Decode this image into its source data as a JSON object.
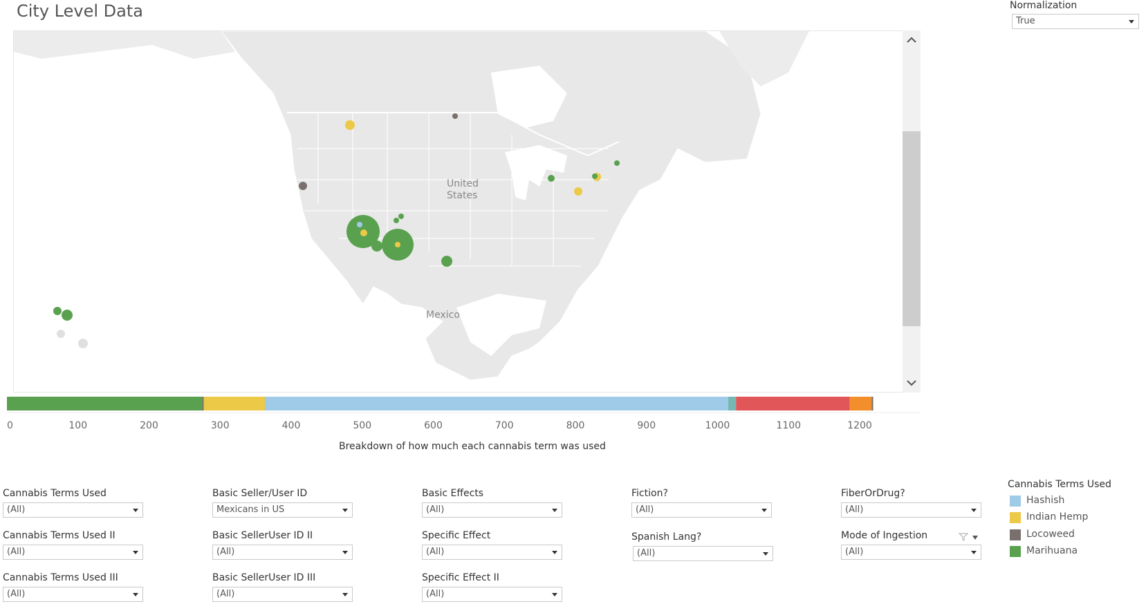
{
  "title": "City Level Data",
  "normalization": {
    "label": "Normalization",
    "value": "True"
  },
  "map": {
    "labels": {
      "united_states_line1": "United",
      "united_states_line2": "States",
      "mexico": "Mexico"
    },
    "scroll_up_icon": "chevron-up-icon",
    "scroll_down_icon": "chevron-down-icon"
  },
  "colors": {
    "marihuana": "#59a14f",
    "indian_hemp": "#edc948",
    "hashish": "#a0cbe8",
    "locoweed": "#79706e",
    "teal": "#76b7b2",
    "red": "#e15759",
    "orange": "#f28e2b"
  },
  "chart_data": {
    "type": "bar",
    "orientation": "horizontal-stacked",
    "xlabel": "Breakdown of how much each cannabis term was used",
    "ticks": [
      0,
      100,
      200,
      300,
      400,
      500,
      600,
      700,
      800,
      900,
      1000,
      1100,
      1200
    ],
    "xlim": [
      0,
      1270
    ],
    "segments": [
      {
        "color": "#59a14f",
        "start": 0,
        "end": 275
      },
      {
        "color": "#79706e",
        "start": 275,
        "end": 277
      },
      {
        "color": "#edc948",
        "start": 277,
        "end": 363
      },
      {
        "color": "#a0cbe8",
        "start": 363,
        "end": 1015
      },
      {
        "color": "#76b7b2",
        "start": 1015,
        "end": 1026
      },
      {
        "color": "#e15759",
        "start": 1026,
        "end": 1186
      },
      {
        "color": "#f28e2b",
        "start": 1186,
        "end": 1217
      },
      {
        "color": "#79706e",
        "start": 1217,
        "end": 1219
      }
    ]
  },
  "filters": [
    {
      "label": "Cannabis Terms Used",
      "value": "(All)"
    },
    {
      "label": "Cannabis Terms Used II",
      "value": "(All)"
    },
    {
      "label": "Cannabis Terms Used III",
      "value": "(All)"
    },
    {
      "label": "Basic Seller/User ID",
      "value": "Mexicans in US"
    },
    {
      "label": "Basic SellerUser ID II",
      "value": "(All)"
    },
    {
      "label": "Basic SellerUser ID III",
      "value": "(All)"
    },
    {
      "label": "Basic Effects",
      "value": "(All)"
    },
    {
      "label": "Specific Effect",
      "value": "(All)"
    },
    {
      "label": "Specific Effect II",
      "value": "(All)"
    },
    {
      "label": "Fiction?",
      "value": "(All)"
    },
    {
      "label": "Spanish Lang?",
      "value": "(All)"
    },
    {
      "label": "FiberOrDrug?",
      "value": "(All)"
    },
    {
      "label": "Mode of Ingestion",
      "value": "(All)"
    }
  ],
  "legend": {
    "title": "Cannabis Terms Used",
    "items": [
      {
        "label": "Hashish",
        "color": "#a0cbe8"
      },
      {
        "label": "Indian Hemp",
        "color": "#edc948"
      },
      {
        "label": "Locoweed",
        "color": "#79706e"
      },
      {
        "label": "Marihuana",
        "color": "#59a14f"
      }
    ]
  }
}
